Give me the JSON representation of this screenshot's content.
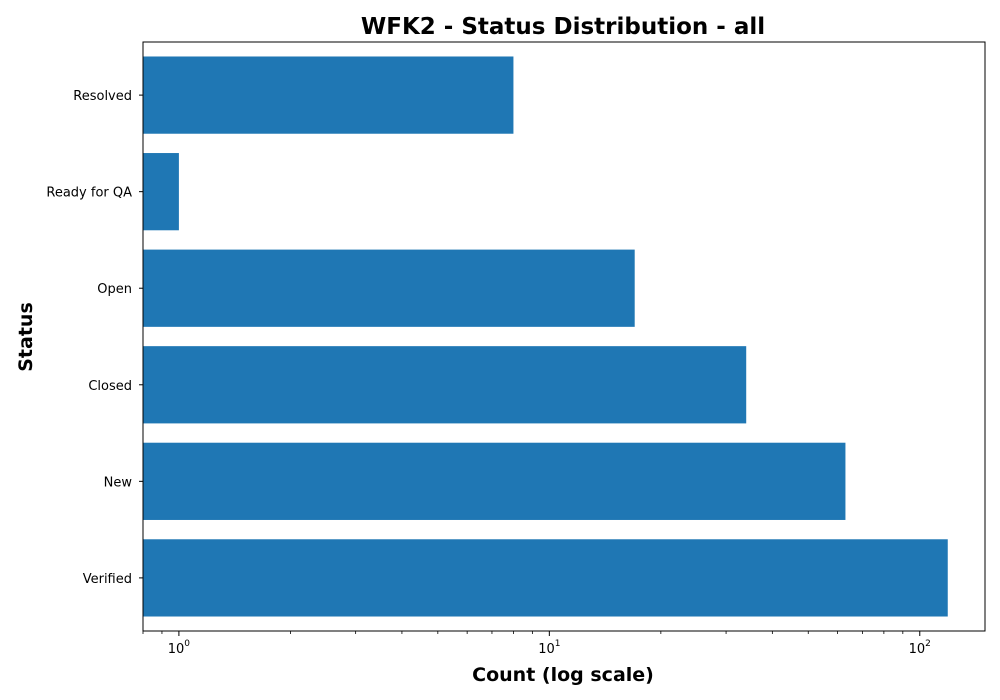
{
  "chart_data": {
    "type": "bar",
    "orientation": "horizontal",
    "title": "WFK2 - Status Distribution - all",
    "xlabel": "Count (log scale)",
    "ylabel": "Status",
    "x_scale": "log",
    "xlim": [
      0.8,
      150
    ],
    "x_ticks": [
      {
        "value": 1,
        "base": "10",
        "exp": "0"
      },
      {
        "value": 10,
        "base": "10",
        "exp": "1"
      },
      {
        "value": 100,
        "base": "10",
        "exp": "2"
      }
    ],
    "categories": [
      "Resolved",
      "Ready for QA",
      "Open",
      "Closed",
      "New",
      "Verified"
    ],
    "values": [
      8,
      1,
      17,
      34,
      63,
      119
    ],
    "bar_color": "#1f77b4",
    "grid": false,
    "legend": "none"
  }
}
